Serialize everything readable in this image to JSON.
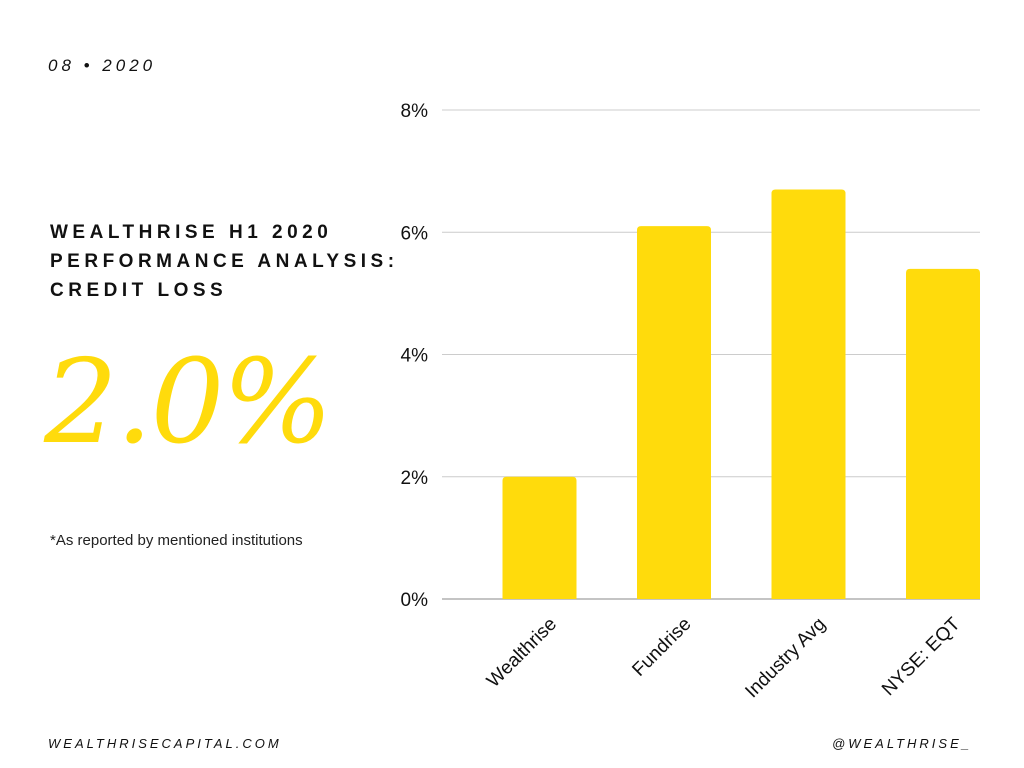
{
  "header": {
    "date": "08 • 2020"
  },
  "title": {
    "lines": [
      "WEALTHRISE H1 2020",
      "PERFORMANCE ANALYSIS:",
      "CREDIT LOSS"
    ]
  },
  "highlight": {
    "value": "2.0%"
  },
  "note": "*As reported by mentioned institutions",
  "footer": {
    "website": "WEALTHRISECAPITAL.COM",
    "handle": "@WEALTHRISE_"
  },
  "colors": {
    "accent": "#FFDB0C",
    "grid": "#cccccc",
    "text": "#111111"
  },
  "chart_data": {
    "type": "bar",
    "categories": [
      "Wealthrise",
      "Fundrise",
      "Industry Avg",
      "NYSE: EQT"
    ],
    "values": [
      2.0,
      6.1,
      6.7,
      5.4
    ],
    "ylim": [
      0,
      8
    ],
    "yticks": [
      0,
      2,
      4,
      6,
      8
    ],
    "ytick_labels": [
      "0%",
      "2%",
      "4%",
      "6%",
      "8%"
    ],
    "grid": true,
    "xlabel": "",
    "ylabel": ""
  }
}
